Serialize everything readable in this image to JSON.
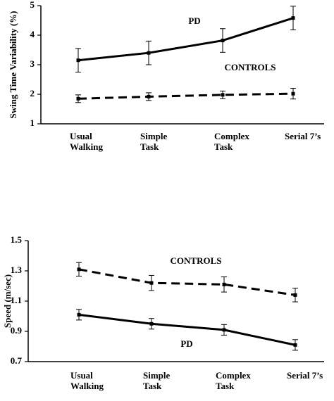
{
  "chart_data": [
    {
      "type": "line",
      "y_label": "Swing Time Variability (%)",
      "categories": [
        "Usual Walking",
        "Simple Task",
        "Complex Task",
        "Serial 7’s"
      ],
      "series": [
        {
          "name": "PD",
          "color": "#000000",
          "dashed": false,
          "values": [
            3.15,
            3.4,
            3.82,
            4.58
          ],
          "errors": [
            0.4,
            0.4,
            0.4,
            0.4
          ]
        },
        {
          "name": "CONTROLS",
          "color": "#000000",
          "dashed": true,
          "values": [
            1.85,
            1.92,
            1.98,
            2.02
          ],
          "errors": [
            0.13,
            0.13,
            0.13,
            0.18
          ]
        }
      ],
      "ylim": [
        1,
        5
      ],
      "yticks": [
        1,
        2,
        3,
        4,
        5
      ],
      "grid": false
    },
    {
      "type": "line",
      "y_label": "Speed (m/sec)",
      "categories": [
        "Usual Walking",
        "Simple Task",
        "Complex Task",
        "Serial 7’s"
      ],
      "series": [
        {
          "name": "CONTROLS",
          "color": "#000000",
          "dashed": true,
          "values": [
            1.31,
            1.22,
            1.21,
            1.14
          ],
          "errors": [
            0.045,
            0.05,
            0.05,
            0.045
          ]
        },
        {
          "name": "PD",
          "color": "#000000",
          "dashed": false,
          "values": [
            1.01,
            0.95,
            0.91,
            0.81
          ],
          "errors": [
            0.035,
            0.035,
            0.035,
            0.035
          ]
        }
      ],
      "ylim": [
        0.7,
        1.5
      ],
      "yticks": [
        0.7,
        0.9,
        1.1,
        1.3,
        1.5
      ],
      "grid": false
    }
  ]
}
